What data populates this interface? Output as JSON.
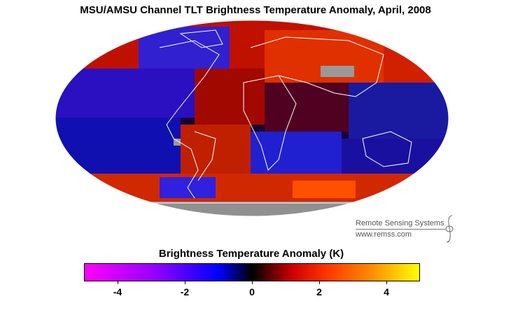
{
  "title": "MSU/AMSU Channel TLT Brightness Temperature Anomaly, April, 2008",
  "colorbar": {
    "title": "Brightness Temperature Anomaly (K)",
    "min": -5,
    "max": 5,
    "ticks": [
      "-4",
      "-2",
      "0",
      "2",
      "4"
    ],
    "colors": [
      "#ff00ff",
      "#9a00ff",
      "#0000ff",
      "#000000",
      "#cc0000",
      "#ff3300",
      "#ff8800",
      "#ffff00"
    ]
  },
  "credits": {
    "org": "Remote Sensing Systems",
    "url": "www.remss.com"
  },
  "map": {
    "projection": "mollweide",
    "missing_data_color": "#999999",
    "coastline_color": "#ffffff"
  }
}
